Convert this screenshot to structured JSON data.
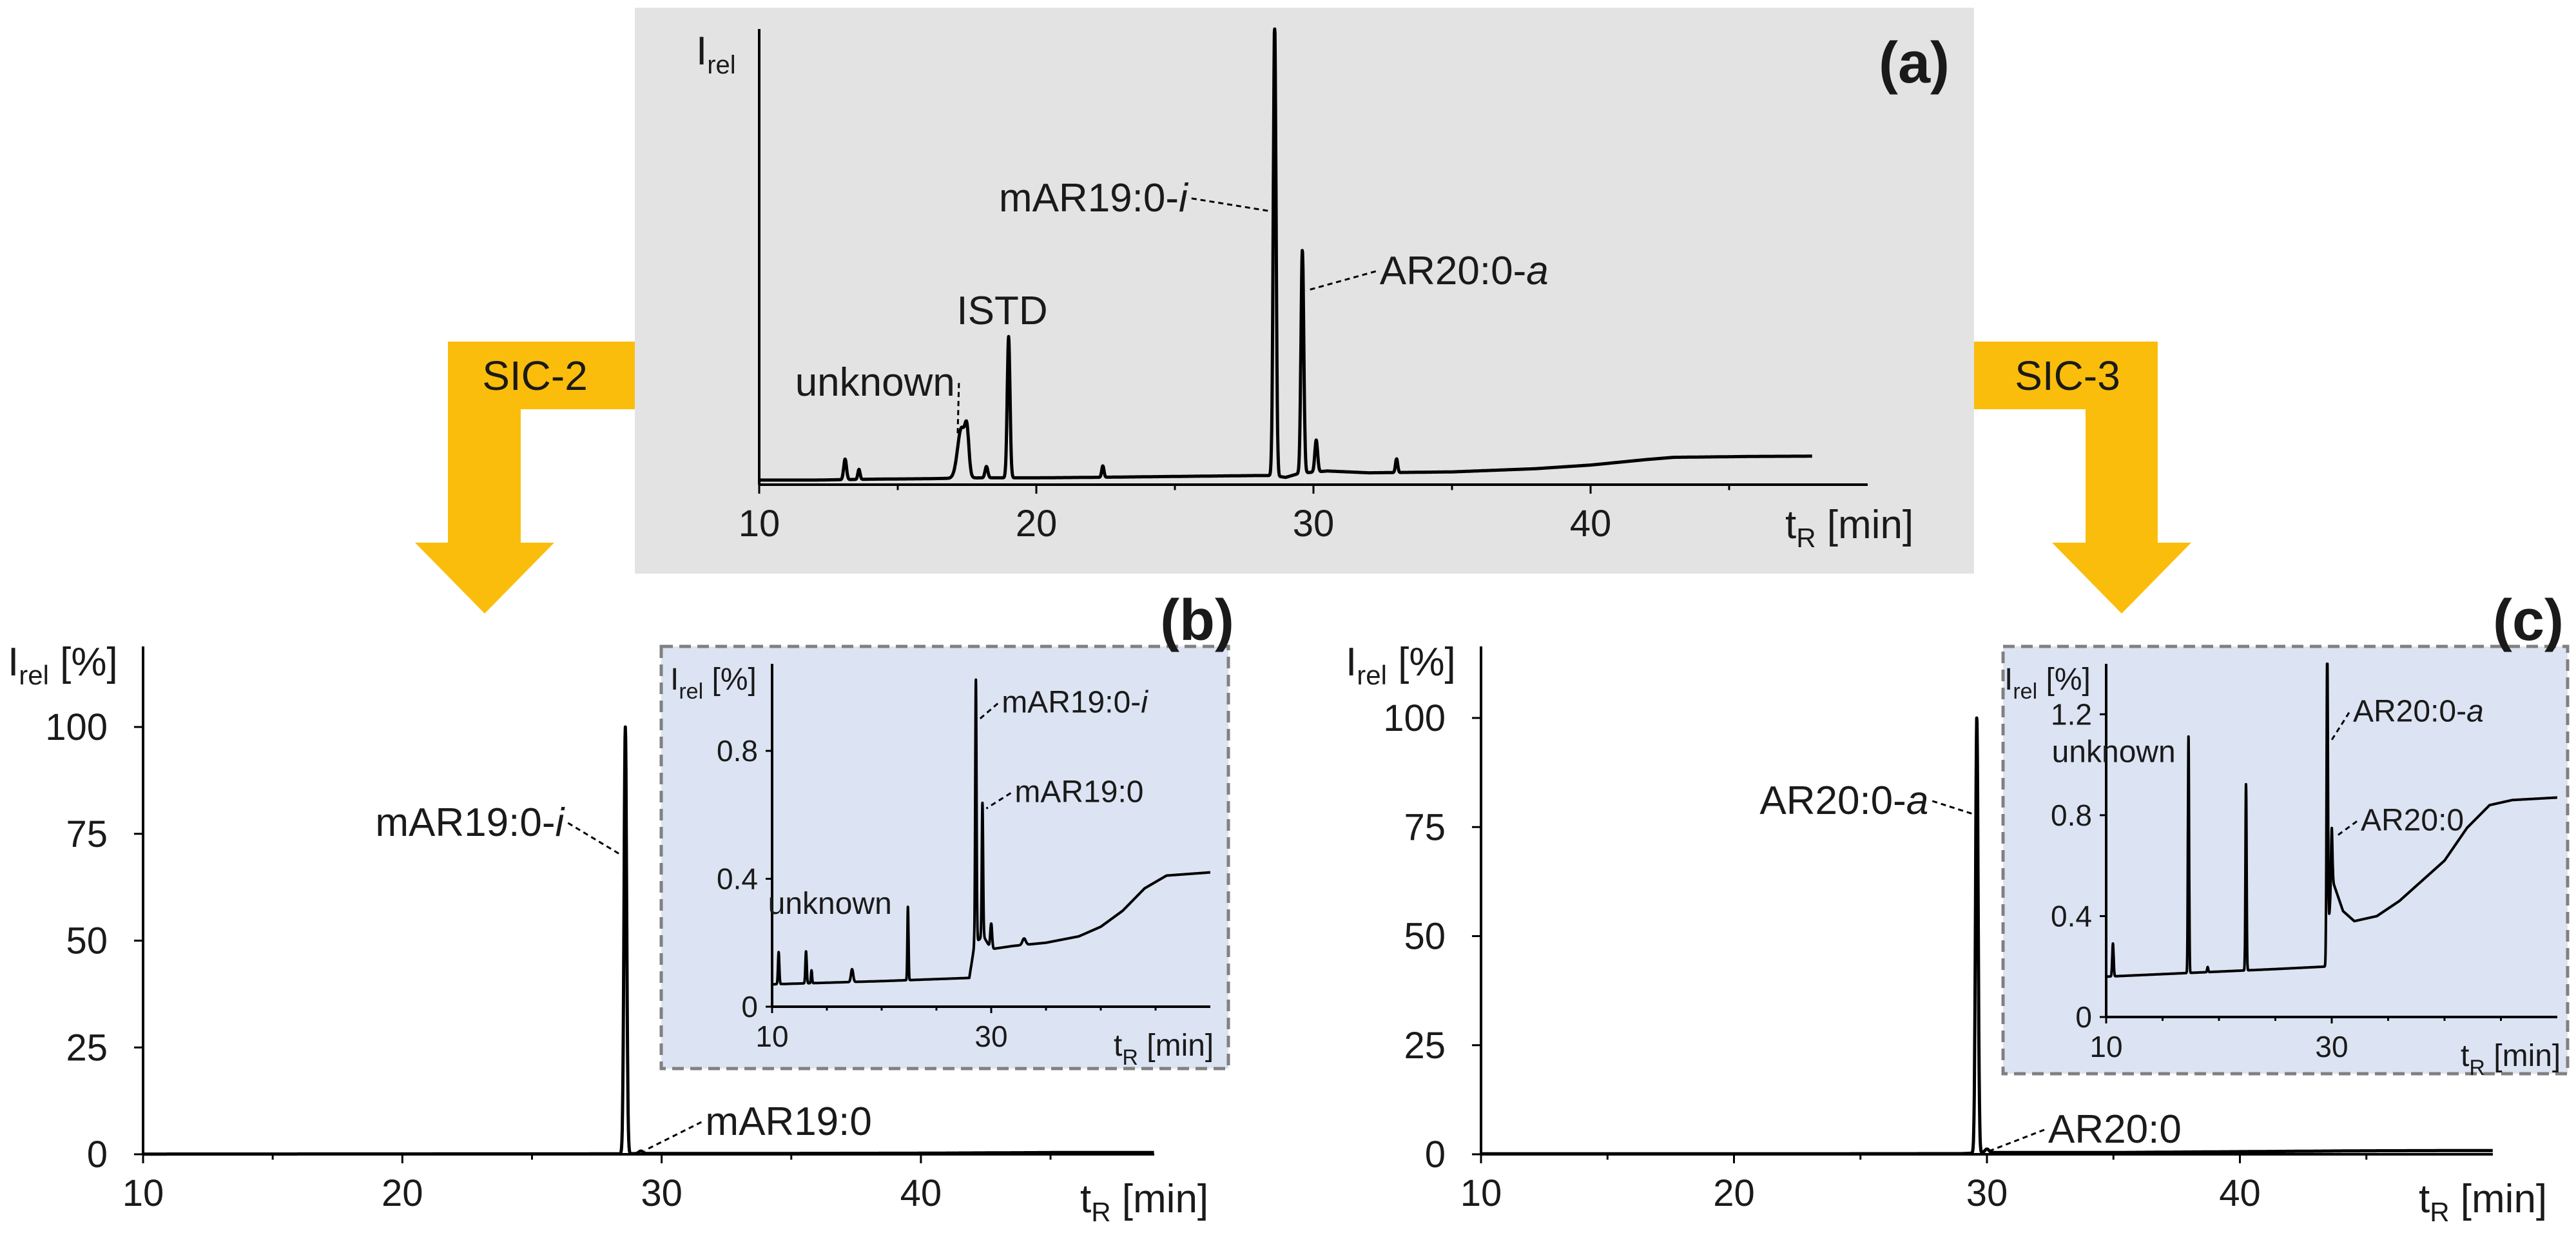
{
  "colors": {
    "panel_a_bg": "#e3e3e3",
    "inset_bg": "#dce3f2",
    "inset_border": "#808080",
    "arrow": "#fbbd0c",
    "trace": "#000000"
  },
  "arrows": {
    "left_label": "SIC-2",
    "right_label": "SIC-3"
  },
  "chart_data": [
    {
      "id": "a",
      "type": "line",
      "title": "(a)",
      "ylabel_main": "I",
      "ylabel_sub": "rel",
      "xlabel_main": "t",
      "xlabel_sub": "R",
      "xlabel_unit": "[min]",
      "xlim": [
        10,
        50
      ],
      "ylim": [
        0,
        100
      ],
      "xticks": [
        "10",
        "20",
        "30",
        "40"
      ],
      "yticks": [],
      "baseline": [
        [
          10,
          1
        ],
        [
          12,
          1
        ],
        [
          14,
          1.2
        ],
        [
          16,
          1.3
        ],
        [
          18,
          1.5
        ],
        [
          20,
          1.5
        ],
        [
          22,
          1.6
        ],
        [
          25,
          1.8
        ],
        [
          28,
          2
        ],
        [
          28.5,
          2
        ],
        [
          29,
          1.6
        ],
        [
          29.5,
          2.5
        ],
        [
          30.5,
          3
        ],
        [
          32,
          2.6
        ],
        [
          35,
          2.8
        ],
        [
          38,
          3.5
        ],
        [
          40,
          4.3
        ],
        [
          42,
          5.5
        ],
        [
          43,
          6
        ],
        [
          46,
          6.2
        ],
        [
          50,
          6.3
        ]
      ],
      "peaks": [
        {
          "x": 13.1,
          "y": 4.5,
          "w": 0.05
        },
        {
          "x": 13.6,
          "y": 2.2,
          "w": 0.04
        },
        {
          "x": 17.3,
          "y": 11,
          "w": 0.14
        },
        {
          "x": 17.5,
          "y": 8,
          "w": 0.07
        },
        {
          "x": 18.2,
          "y": 2.5,
          "w": 0.05
        },
        {
          "x": 19.0,
          "y": 31,
          "w": 0.05
        },
        {
          "x": 22.4,
          "y": 2.5,
          "w": 0.04
        },
        {
          "x": 28.6,
          "y": 100,
          "w": 0.05
        },
        {
          "x": 29.6,
          "y": 49,
          "w": 0.05
        },
        {
          "x": 30.1,
          "y": 7,
          "w": 0.05
        },
        {
          "x": 33.0,
          "y": 3,
          "w": 0.04
        }
      ],
      "annotations": [
        {
          "text": "unknown",
          "italic": "",
          "x": 17.3,
          "y": 11
        },
        {
          "text": "ISTD",
          "italic": "",
          "x": 19.0,
          "y": 31
        },
        {
          "text": "mAR19:0-",
          "italic": "i",
          "x": 28.6,
          "y": 60
        },
        {
          "text": "AR20:0-",
          "italic": "a",
          "x": 29.6,
          "y": 44
        }
      ]
    },
    {
      "id": "b",
      "type": "line",
      "title": "(b)",
      "ylabel_main": "I",
      "ylabel_sub": "rel",
      "ylabel_unit": "[%]",
      "xlabel_main": "t",
      "xlabel_sub": "R",
      "xlabel_unit": "[min]",
      "xlim": [
        10,
        49
      ],
      "ylim": [
        0,
        100
      ],
      "xticks": [
        "10",
        "20",
        "30",
        "40"
      ],
      "yticks": [
        "0",
        "25",
        "50",
        "75",
        "100"
      ],
      "baseline": [
        [
          10,
          0.05
        ],
        [
          20,
          0.08
        ],
        [
          28,
          0.1
        ],
        [
          30,
          0.2
        ],
        [
          35,
          0.2
        ],
        [
          40,
          0.25
        ],
        [
          45,
          0.4
        ],
        [
          49,
          0.42
        ]
      ],
      "peaks": [
        {
          "x": 28.6,
          "y": 100,
          "w": 0.05
        },
        {
          "x": 29.2,
          "y": 0.6,
          "w": 0.08
        }
      ],
      "annotations": [
        {
          "text": "mAR19:0-",
          "italic": "i",
          "x": 28.6,
          "y": 70
        },
        {
          "text": "mAR19:0",
          "italic": "",
          "x": 29.2,
          "y": 0.6
        }
      ]
    },
    {
      "id": "b-inset",
      "type": "line",
      "ylabel_main": "I",
      "ylabel_sub": "rel",
      "ylabel_unit": "[%]",
      "xlabel_main": "t",
      "xlabel_sub": "R",
      "xlabel_unit": "[min]",
      "xlim": [
        10,
        50
      ],
      "ylim": [
        0,
        1.05
      ],
      "xticks": [
        "10",
        "30"
      ],
      "yticks": [
        "0",
        "0.4",
        "0.8"
      ],
      "baseline": [
        [
          10,
          0.07
        ],
        [
          15,
          0.075
        ],
        [
          20,
          0.08
        ],
        [
          28,
          0.09
        ],
        [
          28.5,
          0.2
        ],
        [
          29.3,
          0.22
        ],
        [
          30,
          0.18
        ],
        [
          32,
          0.19
        ],
        [
          35,
          0.2
        ],
        [
          38,
          0.22
        ],
        [
          40,
          0.25
        ],
        [
          42,
          0.3
        ],
        [
          44,
          0.37
        ],
        [
          46,
          0.41
        ],
        [
          50,
          0.42
        ]
      ],
      "peaks": [
        {
          "x": 10.6,
          "y": 0.1,
          "w": 0.06
        },
        {
          "x": 13.1,
          "y": 0.1,
          "w": 0.06
        },
        {
          "x": 13.6,
          "y": 0.04,
          "w": 0.05
        },
        {
          "x": 17.3,
          "y": 0.04,
          "w": 0.1
        },
        {
          "x": 22.4,
          "y": 0.23,
          "w": 0.05
        },
        {
          "x": 28.6,
          "y": 0.82,
          "w": 0.06
        },
        {
          "x": 29.2,
          "y": 0.42,
          "w": 0.06
        },
        {
          "x": 30.0,
          "y": 0.08,
          "w": 0.08
        },
        {
          "x": 33.0,
          "y": 0.02,
          "w": 0.15
        }
      ],
      "annotations": [
        {
          "text": "unknown",
          "italic": "",
          "x": 22.4,
          "y": 0.31
        },
        {
          "text": "mAR19:0-",
          "italic": "i",
          "x": 28.6,
          "y": 0.92
        },
        {
          "text": "mAR19:0",
          "italic": "",
          "x": 29.2,
          "y": 0.64
        }
      ]
    },
    {
      "id": "c",
      "type": "line",
      "title": "(c)",
      "ylabel_main": "I",
      "ylabel_sub": "rel",
      "ylabel_unit": "[%]",
      "xlabel_main": "t",
      "xlabel_sub": "R",
      "xlabel_unit": "[min]",
      "xlim": [
        10,
        50
      ],
      "ylim": [
        0,
        100
      ],
      "xticks": [
        "10",
        "20",
        "30",
        "40"
      ],
      "yticks": [
        "0",
        "25",
        "50",
        "75",
        "100"
      ],
      "baseline": [
        [
          10,
          0.1
        ],
        [
          20,
          0.1
        ],
        [
          29,
          0.15
        ],
        [
          30,
          0.4
        ],
        [
          35,
          0.4
        ],
        [
          40,
          0.6
        ],
        [
          45,
          0.8
        ],
        [
          49,
          0.85
        ]
      ],
      "peaks": [
        {
          "x": 29.6,
          "y": 100,
          "w": 0.05
        },
        {
          "x": 30.0,
          "y": 0.8,
          "w": 0.08
        }
      ],
      "annotations": [
        {
          "text": "AR20:0-",
          "italic": "a",
          "x": 29.6,
          "y": 78
        },
        {
          "text": "AR20:0",
          "italic": "",
          "x": 30.0,
          "y": 0.8
        }
      ]
    },
    {
      "id": "c-inset",
      "type": "line",
      "ylabel_main": "I",
      "ylabel_sub": "rel",
      "ylabel_unit": "[%]",
      "xlabel_main": "t",
      "xlabel_sub": "R",
      "xlabel_unit": "[min]",
      "xlim": [
        10,
        50
      ],
      "ylim": [
        0,
        1.4
      ],
      "xticks": [
        "10",
        "30"
      ],
      "yticks": [
        "0",
        "0.4",
        "0.8",
        "1.2"
      ],
      "baseline": [
        [
          10,
          0.16
        ],
        [
          15,
          0.17
        ],
        [
          20,
          0.18
        ],
        [
          25,
          0.19
        ],
        [
          29.5,
          0.2
        ],
        [
          30,
          0.55
        ],
        [
          31,
          0.42
        ],
        [
          32,
          0.38
        ],
        [
          34,
          0.4
        ],
        [
          36,
          0.46
        ],
        [
          38,
          0.54
        ],
        [
          40,
          0.62
        ],
        [
          42,
          0.75
        ],
        [
          44,
          0.84
        ],
        [
          46,
          0.86
        ],
        [
          50,
          0.87
        ]
      ],
      "peaks": [
        {
          "x": 10.6,
          "y": 0.13,
          "w": 0.06
        },
        {
          "x": 17.3,
          "y": 0.94,
          "w": 0.05
        },
        {
          "x": 19.0,
          "y": 0.02,
          "w": 0.05
        },
        {
          "x": 22.4,
          "y": 0.74,
          "w": 0.05
        },
        {
          "x": 29.6,
          "y": 1.2,
          "w": 0.06
        },
        {
          "x": 30.0,
          "y": 0.2,
          "w": 0.06
        }
      ],
      "annotations": [
        {
          "text": "unknown",
          "italic": "",
          "x": 17.3,
          "y": 1.1
        },
        {
          "text": "AR20:0-",
          "italic": "a",
          "x": 29.6,
          "y": 1.12
        },
        {
          "text": "AR20:0",
          "italic": "",
          "x": 30.0,
          "y": 0.74
        }
      ]
    }
  ]
}
